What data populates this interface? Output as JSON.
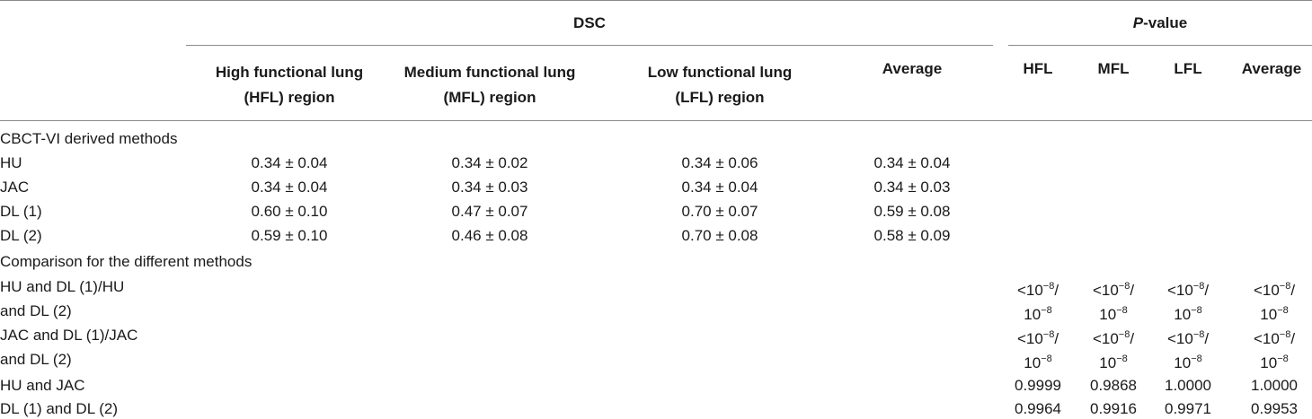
{
  "header": {
    "dsc": "DSC",
    "pvalue_italic": "P",
    "pvalue_rest": "-value",
    "hfl_region_l1": "High functional lung",
    "hfl_region_l2": "(HFL) region",
    "mfl_region_l1": "Medium functional lung",
    "mfl_region_l2": "(MFL) region",
    "lfl_region_l1": "Low functional lung",
    "lfl_region_l2": "(LFL) region",
    "average": "Average",
    "hfl": "HFL",
    "mfl": "MFL",
    "lfl": "LFL",
    "average_p": "Average"
  },
  "section1": {
    "label": "CBCT-VI derived methods",
    "rows": [
      {
        "name": "HU",
        "hfl": "0.34 ± 0.04",
        "mfl": "0.34 ± 0.02",
        "lfl": "0.34 ± 0.06",
        "avg": "0.34 ± 0.04"
      },
      {
        "name": "JAC",
        "hfl": "0.34 ± 0.04",
        "mfl": "0.34 ± 0.03",
        "lfl": "0.34 ± 0.04",
        "avg": "0.34 ± 0.03"
      },
      {
        "name": "DL (1)",
        "hfl": "0.60 ± 0.10",
        "mfl": "0.47 ± 0.07",
        "lfl": "0.70 ± 0.07",
        "avg": "0.59 ± 0.08"
      },
      {
        "name": "DL (2)",
        "hfl": "0.59 ± 0.10",
        "mfl": "0.46 ± 0.08",
        "lfl": "0.70 ± 0.08",
        "avg": "0.58 ± 0.09"
      }
    ]
  },
  "section2": {
    "label": "Comparison for the different methods",
    "pv_lt": "<10",
    "pv_exp": "−8",
    "pv_slash": "/",
    "pv_base": "10",
    "rows": [
      {
        "name_l1": "HU and DL (1)/HU",
        "name_l2": "and DL (2)"
      },
      {
        "name_l1": "JAC and DL (1)/JAC",
        "name_l2": "and DL (2)"
      },
      {
        "name": "HU and JAC",
        "hfl": "0.9999",
        "mfl": "0.9868",
        "lfl": "1.0000",
        "avg": "1.0000"
      },
      {
        "name": "DL (1) and DL (2)",
        "hfl": "0.9964",
        "mfl": "0.9916",
        "lfl": "0.9971",
        "avg": "0.9953"
      }
    ]
  }
}
